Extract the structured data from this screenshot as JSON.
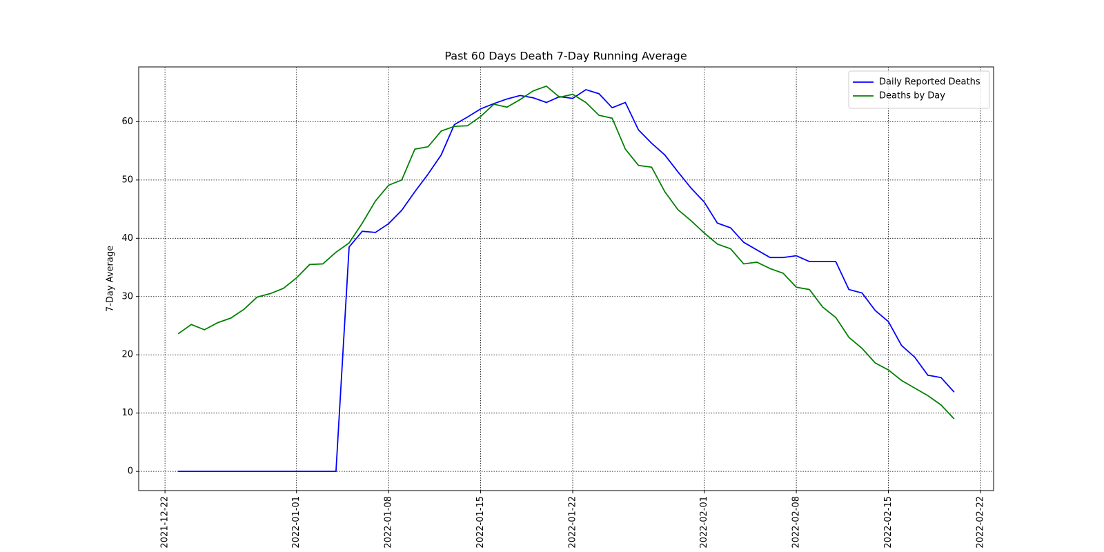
{
  "chart_data": {
    "type": "line",
    "title": "Past 60 Days Death 7-Day Running Average",
    "ylabel": "7-Day Average",
    "x": [
      "2021-12-23",
      "2021-12-24",
      "2021-12-25",
      "2021-12-26",
      "2021-12-27",
      "2021-12-28",
      "2021-12-29",
      "2021-12-30",
      "2021-12-31",
      "2022-01-01",
      "2022-01-02",
      "2022-01-03",
      "2022-01-04",
      "2022-01-05",
      "2022-01-06",
      "2022-01-07",
      "2022-01-08",
      "2022-01-09",
      "2022-01-10",
      "2022-01-11",
      "2022-01-12",
      "2022-01-13",
      "2022-01-14",
      "2022-01-15",
      "2022-01-16",
      "2022-01-17",
      "2022-01-18",
      "2022-01-19",
      "2022-01-20",
      "2022-01-21",
      "2022-01-22",
      "2022-01-23",
      "2022-01-24",
      "2022-01-25",
      "2022-01-26",
      "2022-01-27",
      "2022-01-28",
      "2022-01-29",
      "2022-01-30",
      "2022-01-31",
      "2022-02-01",
      "2022-02-02",
      "2022-02-03",
      "2022-02-04",
      "2022-02-05",
      "2022-02-06",
      "2022-02-07",
      "2022-02-08",
      "2022-02-09",
      "2022-02-10",
      "2022-02-11",
      "2022-02-12",
      "2022-02-13",
      "2022-02-14",
      "2022-02-15",
      "2022-02-16",
      "2022-02-17",
      "2022-02-18",
      "2022-02-19",
      "2022-02-20"
    ],
    "series": [
      {
        "name": "Daily Reported Deaths",
        "color": "#0000ff",
        "values": [
          0,
          0,
          0,
          0,
          0,
          0,
          0,
          0,
          0,
          0,
          0,
          0,
          0,
          38.5,
          41.2,
          41.0,
          42.5,
          44.8,
          48.0,
          51.0,
          54.3,
          59.5,
          60.8,
          62.2,
          63.1,
          63.9,
          64.5,
          64.1,
          63.3,
          64.3,
          64.0,
          65.5,
          64.8,
          62.4,
          63.3,
          58.6,
          56.3,
          54.3,
          51.4,
          48.6,
          46.2,
          42.6,
          41.8,
          39.3,
          38.0,
          36.7,
          36.7,
          37.0,
          36.0,
          36.0,
          36.0,
          31.2,
          30.6,
          27.6,
          25.7,
          21.6,
          19.6,
          16.5,
          16.1,
          13.6
        ]
      },
      {
        "name": "Deaths by Day",
        "color": "#008000",
        "values": [
          23.6,
          25.2,
          24.3,
          25.5,
          26.3,
          27.8,
          29.9,
          30.5,
          31.4,
          33.2,
          35.5,
          35.6,
          37.6,
          39.2,
          42.6,
          46.4,
          49.1,
          50.0,
          55.3,
          55.7,
          58.4,
          59.2,
          59.3,
          60.9,
          63.0,
          62.5,
          63.8,
          65.3,
          66.1,
          64.2,
          64.7,
          63.3,
          61.1,
          60.6,
          55.3,
          52.5,
          52.2,
          48.0,
          44.9,
          43.0,
          40.9,
          39.0,
          38.2,
          35.6,
          35.9,
          34.8,
          34.0,
          31.6,
          31.2,
          28.2,
          26.4,
          23.0,
          21.1,
          18.6,
          17.4,
          15.6,
          14.3,
          13.0,
          11.4,
          9.0
        ]
      }
    ],
    "xlim": [
      "2021-12-20",
      "2022-02-23"
    ],
    "xticks": [
      "2021-12-22",
      "2022-01-01",
      "2022-01-08",
      "2022-01-15",
      "2022-01-22",
      "2022-02-01",
      "2022-02-08",
      "2022-02-15",
      "2022-02-22"
    ],
    "ylim": [
      -3.3,
      69.4
    ],
    "yticks": [
      0,
      10,
      20,
      30,
      40,
      50,
      60
    ],
    "grid": true,
    "legend": "upper right"
  }
}
